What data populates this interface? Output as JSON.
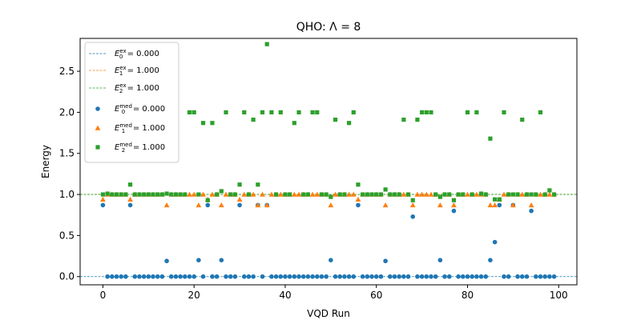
{
  "chart_data": {
    "type": "scatter",
    "title": "QHO: Λ = 8",
    "xlabel": "VQD Run",
    "ylabel": "Energy",
    "xlim": [
      -5,
      104
    ],
    "ylim": [
      -0.1,
      2.9
    ],
    "xticks": [
      0,
      20,
      40,
      60,
      80,
      100
    ],
    "yticks": [
      0.0,
      0.5,
      1.0,
      1.5,
      2.0,
      2.5
    ],
    "xtick_labels": [
      "0",
      "20",
      "40",
      "60",
      "80",
      "100"
    ],
    "ytick_labels": [
      "0.0",
      "0.5",
      "1.0",
      "1.5",
      "2.0",
      "2.5"
    ],
    "grid": false,
    "legend_position": "top-left",
    "colors": {
      "E0": "#1f77b4",
      "E1": "#ff7f0e",
      "E2": "#2ca02c"
    },
    "reference_lines": [
      {
        "name": "E_0^ex = 0.000",
        "sub": "0",
        "label": "= 0.000",
        "y": 0.0,
        "color": "#1f77b4"
      },
      {
        "name": "E_1^ex = 1.000",
        "sub": "1",
        "label": "= 1.000",
        "y": 1.0,
        "color": "#ff7f0e"
      },
      {
        "name": "E_2^ex = 1.000",
        "sub": "2",
        "label": "= 1.000",
        "y": 1.0,
        "color": "#2ca02c"
      }
    ],
    "series": [
      {
        "name": "E_0^med = 0.000",
        "sub": "0",
        "label": "= 0.000",
        "marker": "circle",
        "color": "#1f77b4",
        "x": [
          0,
          1,
          2,
          3,
          4,
          5,
          6,
          7,
          8,
          9,
          10,
          11,
          12,
          13,
          14,
          15,
          16,
          17,
          18,
          19,
          20,
          21,
          22,
          23,
          24,
          25,
          26,
          27,
          28,
          29,
          30,
          31,
          32,
          33,
          34,
          35,
          36,
          37,
          38,
          39,
          40,
          41,
          42,
          43,
          44,
          45,
          46,
          47,
          48,
          49,
          50,
          51,
          52,
          53,
          54,
          55,
          56,
          57,
          58,
          59,
          60,
          61,
          62,
          63,
          64,
          65,
          66,
          67,
          68,
          69,
          70,
          71,
          72,
          73,
          74,
          75,
          76,
          77,
          78,
          79,
          80,
          81,
          82,
          83,
          84,
          85,
          86,
          87,
          88,
          89,
          90,
          91,
          92,
          93,
          94,
          95,
          96,
          97,
          98,
          99
        ],
        "y": [
          0.87,
          0,
          0,
          0,
          0,
          0,
          0.87,
          0,
          0,
          0,
          0,
          0,
          0,
          0,
          0.19,
          0,
          0,
          0,
          0,
          0,
          0,
          0.2,
          0,
          0.87,
          0,
          0,
          0.2,
          0,
          0,
          0,
          0.87,
          0,
          0,
          0,
          0.87,
          0,
          0.87,
          0,
          0,
          0,
          0,
          0,
          0,
          0,
          0,
          0,
          0,
          0,
          0,
          0,
          0.2,
          0,
          0,
          0,
          0,
          0,
          0.87,
          0,
          0,
          0,
          0,
          0,
          0.19,
          0,
          0,
          0,
          0,
          0,
          0.73,
          0,
          0,
          0,
          0,
          0,
          0.2,
          0,
          0,
          0.8,
          0,
          0,
          0,
          0,
          0,
          0,
          0,
          0.2,
          0.42,
          0.87,
          0,
          0,
          0.87,
          0,
          0,
          0,
          0.8,
          0,
          0,
          0,
          0,
          0
        ]
      },
      {
        "name": "E_1^med = 1.000",
        "sub": "1",
        "label": "= 1.000",
        "marker": "triangle",
        "color": "#ff7f0e",
        "x": [
          0,
          1,
          2,
          3,
          4,
          5,
          6,
          7,
          8,
          9,
          10,
          11,
          12,
          13,
          14,
          15,
          16,
          17,
          18,
          19,
          20,
          21,
          22,
          23,
          24,
          25,
          26,
          27,
          28,
          29,
          30,
          31,
          32,
          33,
          34,
          35,
          36,
          37,
          38,
          39,
          40,
          41,
          42,
          43,
          44,
          45,
          46,
          47,
          48,
          49,
          50,
          51,
          52,
          53,
          54,
          55,
          56,
          57,
          58,
          59,
          60,
          61,
          62,
          63,
          64,
          65,
          66,
          67,
          68,
          69,
          70,
          71,
          72,
          73,
          74,
          75,
          76,
          77,
          78,
          79,
          80,
          81,
          82,
          83,
          84,
          85,
          86,
          87,
          88,
          89,
          90,
          91,
          92,
          93,
          94,
          95,
          96,
          97,
          98,
          99
        ],
        "y": [
          0.94,
          1,
          1,
          1,
          1,
          1,
          0.94,
          1,
          1,
          1,
          1,
          1,
          1,
          1,
          0.87,
          1,
          1,
          1,
          1,
          1,
          1,
          0.87,
          1,
          0.94,
          1,
          1,
          0.87,
          1,
          1,
          1,
          0.94,
          1,
          1,
          1,
          0.87,
          1,
          0.87,
          1,
          1,
          1,
          1,
          1,
          1,
          1,
          1,
          1,
          1,
          1,
          1,
          1,
          0.87,
          1,
          1,
          1,
          1,
          1,
          0.94,
          1,
          1,
          1,
          1,
          1,
          0.87,
          1,
          1,
          1,
          1,
          1,
          0.87,
          1,
          1,
          1,
          1,
          1,
          0.87,
          1,
          1,
          0.87,
          1,
          1,
          1,
          1,
          1,
          1,
          1,
          0.87,
          0.87,
          0.94,
          1,
          1,
          0.87,
          1,
          1,
          1,
          0.87,
          1,
          1,
          1,
          1,
          1
        ]
      },
      {
        "name": "E_2^med = 1.000",
        "sub": "2",
        "label": "= 1.000",
        "marker": "square",
        "color": "#2ca02c",
        "x": [
          0,
          1,
          2,
          3,
          4,
          5,
          6,
          7,
          8,
          9,
          10,
          11,
          12,
          13,
          14,
          15,
          16,
          17,
          18,
          19,
          20,
          21,
          22,
          23,
          24,
          25,
          26,
          27,
          28,
          29,
          30,
          31,
          32,
          33,
          34,
          35,
          36,
          37,
          38,
          39,
          40,
          41,
          42,
          43,
          44,
          45,
          46,
          47,
          48,
          49,
          50,
          51,
          52,
          53,
          54,
          55,
          56,
          57,
          58,
          59,
          60,
          61,
          62,
          63,
          64,
          65,
          66,
          67,
          68,
          69,
          70,
          71,
          72,
          73,
          74,
          75,
          76,
          77,
          78,
          79,
          80,
          81,
          82,
          83,
          84,
          85,
          86,
          87,
          88,
          89,
          90,
          91,
          92,
          93,
          94,
          95,
          96,
          97,
          98,
          99
        ],
        "y": [
          1,
          1.01,
          1,
          1,
          1,
          1,
          1.12,
          1,
          1,
          1,
          1,
          1,
          1,
          1,
          1.01,
          1,
          1,
          1,
          1,
          2,
          2,
          1,
          1.87,
          0.93,
          1.87,
          1,
          1.04,
          2,
          1,
          1,
          1.12,
          2,
          1,
          1.91,
          1.12,
          2,
          2.83,
          2,
          1,
          2,
          1,
          1,
          1.87,
          2,
          1,
          1,
          2,
          2,
          1,
          1,
          0.97,
          1.91,
          1,
          1,
          1.87,
          2,
          1.12,
          1,
          1,
          1,
          1,
          1,
          1.06,
          1,
          1,
          1,
          1.91,
          1,
          0.93,
          1.91,
          2,
          2,
          2,
          1,
          0.97,
          1,
          1,
          0.93,
          1,
          1,
          2,
          1,
          2,
          1.01,
          1,
          1.68,
          0.94,
          0.94,
          2,
          1,
          1,
          1,
          1.91,
          1,
          1,
          1,
          2,
          1,
          1.05,
          1
        ]
      }
    ]
  }
}
